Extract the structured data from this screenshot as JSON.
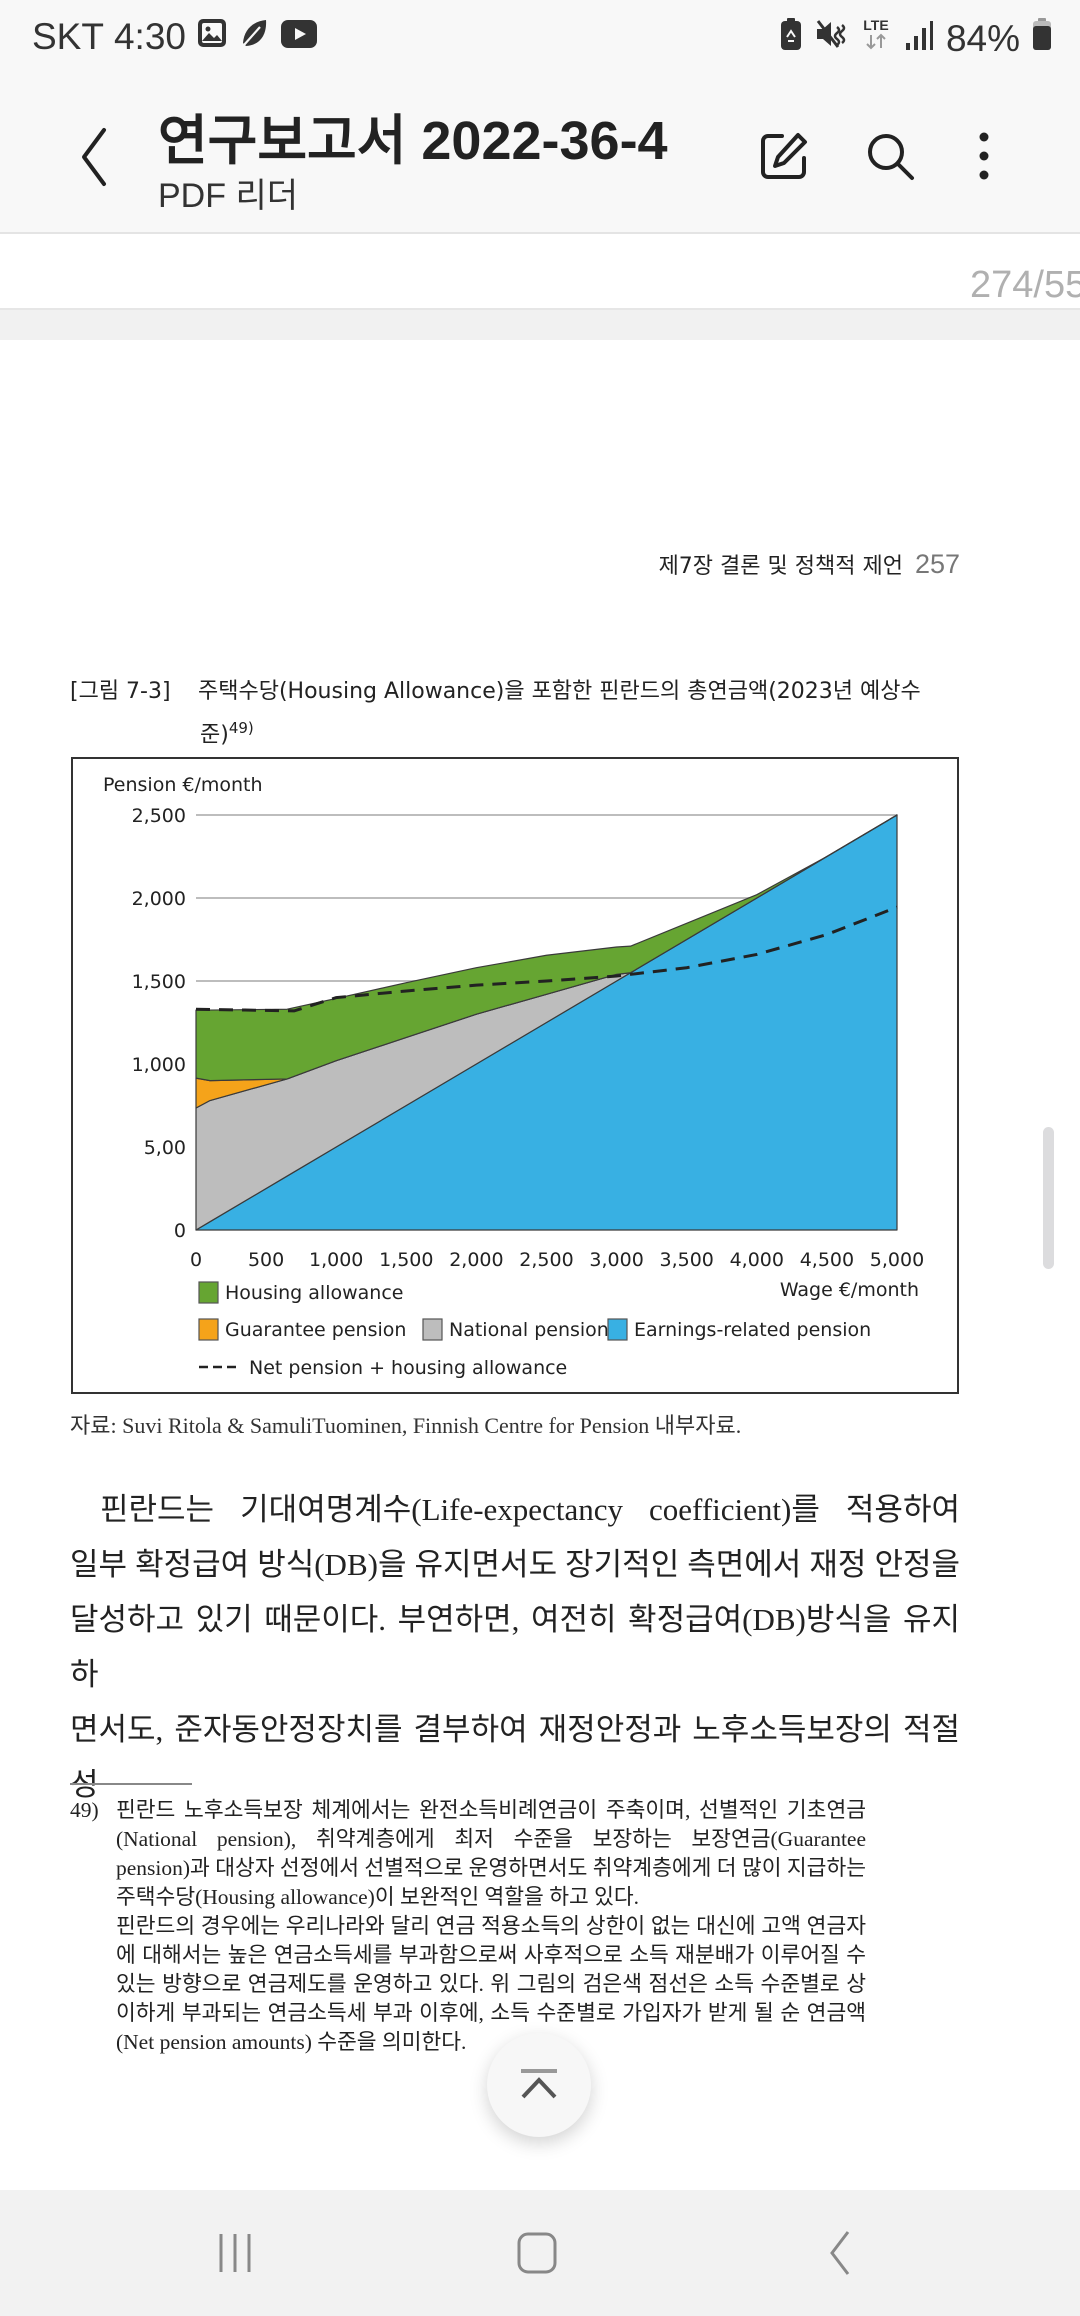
{
  "status_bar": {
    "carrier": "SKT",
    "time": "4:30",
    "left_icons": [
      "gallery-icon",
      "feather-icon",
      "youtube-icon"
    ],
    "right_icons": [
      "battery-saver-icon",
      "mute-icon",
      "lte-icon",
      "signal-icon"
    ],
    "network": "LTE",
    "battery": "84%"
  },
  "app_bar": {
    "title": "연구보고서 2022-36-4",
    "subtitle": "PDF 리더",
    "actions": [
      "edit-icon",
      "search-icon",
      "more-options-icon"
    ]
  },
  "page_indicator": "274/55",
  "document": {
    "running_header": "제7장 결론 및 정책적 제언",
    "page_number": "257",
    "figure_caption_label": "[그림 7-3]",
    "figure_caption_line1": "주택수당(Housing Allowance)을 포함한 핀란드의 총연금액(2023년 예상수",
    "figure_caption_line2": "준)",
    "figure_caption_ref": "49)",
    "source": "자료: Suvi Ritola & SamuliTuominen, Finnish Centre for Pension 내부자료.",
    "body_lines": [
      "핀란드는 기대여명계수(Life-expectancy coefficient)를 적용하여",
      "일부 확정급여 방식(DB)을 유지면서도 장기적인 측면에서 재정 안정을",
      "달성하고 있기 때문이다. 부연하면, 여전히 확정급여(DB)방식을 유지하",
      "면서도, 준자동안정장치를 결부하여 재정안정과 노후소득보장의 적절성"
    ],
    "footnote_number": "49)",
    "footnote_lines": [
      "핀란드 노후소득보장 체계에서는 완전소득비례연금이 주축이며, 선별적인 기초연금",
      "(National pension), 취약계층에게 최저 수준을 보장하는 보장연금(Guarantee",
      "pension)과 대상자 선정에서 선별적으로 운영하면서도 취약계층에게 더 많이 지급하는",
      "주택수당(Housing allowance)이 보완적인 역할을 하고 있다.",
      "핀란드의 경우에는 우리나라와 달리 연금 적용소득의 상한이 없는 대신에 고액 연금자",
      "에 대해서는 높은 연금소득세를 부과함으로써 사후적으로 소득 재분배가 이루어질 수",
      "있는 방향으로 연금제도를 운영하고 있다. 위 그림의 검은색 점선은 소득 수준별로 상",
      "이하게 부과되는 연금소득세 부과 이후에, 소득 수준별로 가입자가 받게 될 순 연금액",
      "(Net pension amounts) 수준을 의미한다."
    ]
  },
  "chart_data": {
    "type": "area",
    "stacked": true,
    "title": "",
    "ylabel": "Pension €/month",
    "xlabel": "Wage €/month",
    "xlim": [
      0,
      5000
    ],
    "ylim": [
      0,
      2500
    ],
    "x_ticks": [
      "0",
      "500",
      "1,000",
      "1,500",
      "2,000",
      "2,500",
      "3,000",
      "3,500",
      "4,000",
      "4,500",
      "5,000"
    ],
    "y_ticks": [
      "0",
      "5,00",
      "1,000",
      "1,500",
      "2,000",
      "2,500"
    ],
    "grid": "horizontal",
    "x": [
      0,
      100,
      650,
      1000,
      1500,
      2000,
      2500,
      3000,
      3100,
      4000,
      4500,
      5000
    ],
    "series": [
      {
        "name": "Earnings-related pension",
        "color": "#38b0e3",
        "values": [
          0,
          50,
          325,
          500,
          750,
          1000,
          1250,
          1500,
          1550,
          2000,
          2250,
          2500
        ]
      },
      {
        "name": "National pension",
        "color": "#bdbdbd",
        "values": [
          735,
          730,
          585,
          520,
          410,
          300,
          170,
          40,
          0,
          0,
          0,
          0
        ]
      },
      {
        "name": "Guarantee pension",
        "color": "#f5a31a",
        "values": [
          180,
          120,
          0,
          0,
          0,
          0,
          0,
          0,
          0,
          0,
          0,
          0
        ]
      },
      {
        "name": "Housing allowance",
        "color": "#66a532",
        "values": [
          410,
          425,
          420,
          375,
          330,
          280,
          235,
          165,
          160,
          20,
          0,
          0
        ]
      }
    ],
    "line_series": [
      {
        "name": "Net pension + housing allowance",
        "style": "dashed",
        "color": "#222222",
        "x": [
          0,
          350,
          700,
          1000,
          1500,
          2000,
          2500,
          3000,
          3500,
          4000,
          4500,
          5000
        ],
        "values": [
          1330,
          1325,
          1320,
          1400,
          1440,
          1475,
          1500,
          1530,
          1580,
          1660,
          1780,
          1945
        ]
      }
    ],
    "legend": [
      {
        "label": "Housing allowance",
        "swatch": "#66a532"
      },
      {
        "label": "Guarantee pension",
        "swatch": "#f5a31a"
      },
      {
        "label": "National pension",
        "swatch": "#bdbdbd"
      },
      {
        "label": "Earnings-related pension",
        "swatch": "#38b0e3"
      },
      {
        "label": "Net pension + housing allowance",
        "swatch": "dashed-line"
      }
    ],
    "legend_position": "bottom"
  },
  "fab": {
    "icon": "scroll-to-top-icon"
  },
  "nav_bar": {
    "buttons": [
      "recent-apps-icon",
      "home-icon",
      "back-icon"
    ]
  }
}
